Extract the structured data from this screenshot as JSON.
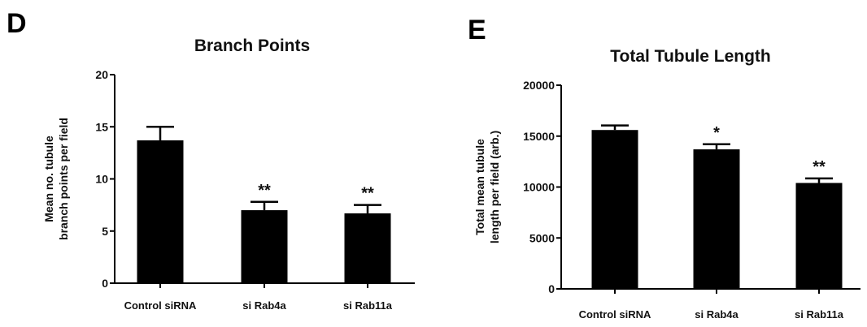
{
  "chart_data": [
    {
      "panel": "D",
      "type": "bar",
      "title": "Branch Points",
      "ylabel": [
        "Mean no. tubule",
        "branch points per field"
      ],
      "xlabel": "",
      "categories": [
        "Control siRNA",
        "si Rab4a",
        "si Rab11a"
      ],
      "values": [
        13.7,
        7.0,
        6.7
      ],
      "errors": [
        1.3,
        0.8,
        0.8
      ],
      "significance": [
        "",
        "**",
        "**"
      ],
      "ylim": [
        0,
        20
      ],
      "yticks": [
        "0",
        "5",
        "10",
        "15",
        "20"
      ],
      "grid": false,
      "bar_color": "#000000"
    },
    {
      "panel": "E",
      "type": "bar",
      "title": "Total Tubule Length",
      "ylabel": [
        "Total mean tubule",
        "length per field (arb.)"
      ],
      "xlabel": "",
      "categories": [
        "Control siRNA",
        "si Rab4a",
        "si Rab11a"
      ],
      "values": [
        15600,
        13700,
        10400
      ],
      "errors": [
        450,
        500,
        450
      ],
      "significance": [
        "",
        "*",
        "**"
      ],
      "ylim": [
        0,
        20000
      ],
      "yticks": [
        "0",
        "5000",
        "10000",
        "15000",
        "20000"
      ],
      "grid": false,
      "bar_color": "#000000"
    }
  ]
}
